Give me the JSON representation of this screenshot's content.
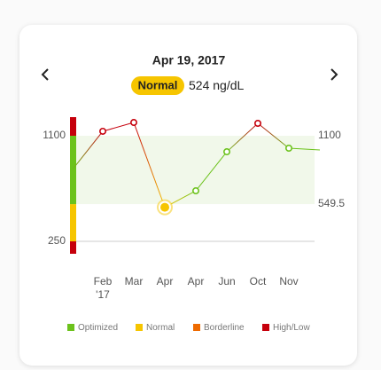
{
  "chart_data": {
    "type": "line",
    "date": "Apr 19, 2017",
    "selected": {
      "status": "Normal",
      "value": 524,
      "unit": "ng/dL"
    },
    "categories": [
      null,
      "Feb",
      "Mar",
      "Apr",
      "Apr",
      "Jun",
      "Oct",
      "Nov",
      null
    ],
    "sublabels": [
      null,
      "'17",
      null,
      null,
      null,
      null,
      null,
      null,
      null
    ],
    "values": [
      821,
      1136,
      1207,
      524,
      657,
      971,
      1200,
      1000,
      986
    ],
    "status": [
      "Optimized",
      "High/Low",
      "High/Low",
      "Normal",
      "Optimized",
      "Optimized",
      "High/Low",
      "Optimized",
      "Optimized"
    ],
    "selected_index": 3,
    "ylim": [
      150,
      1250
    ],
    "yticks": [
      250,
      1100
    ],
    "normal_range": [
      549.5,
      1100
    ],
    "legend": [
      {
        "name": "Optimized",
        "color": "#6cc21c"
      },
      {
        "name": "Normal",
        "color": "#f6c500"
      },
      {
        "name": "Borderline",
        "color": "#ee6a00"
      },
      {
        "name": "High/Low",
        "color": "#c6000c"
      }
    ]
  }
}
